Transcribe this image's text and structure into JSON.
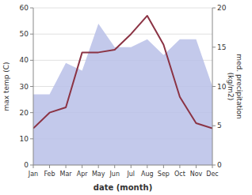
{
  "chart_data": {
    "type": "line",
    "x_label": "date (month)",
    "y_label": "max temp (C)",
    "y2_label": "med. precipitation\n(kg/m2)",
    "categories": [
      "Jan",
      "Feb",
      "Mar",
      "Apr",
      "May",
      "Jun",
      "Jul",
      "Aug",
      "Sep",
      "Oct",
      "Nov",
      "Dec"
    ],
    "series": [
      {
        "type": "area",
        "axis": "y2",
        "color": "#b8bfe8",
        "values": [
          9,
          9,
          13,
          12,
          18,
          15,
          15,
          16,
          14,
          16,
          16,
          10
        ]
      },
      {
        "type": "line",
        "color": "#8b3344",
        "values": [
          14,
          20,
          22,
          43,
          43,
          44,
          50,
          57,
          46,
          26,
          16,
          14
        ]
      }
    ],
    "ylim": [
      0,
      60
    ],
    "yticks": [
      0,
      10,
      20,
      30,
      40,
      50,
      60
    ],
    "y2lim": [
      0,
      20
    ],
    "y2ticks": [
      0,
      5,
      10,
      15,
      20
    ],
    "grid": true
  }
}
